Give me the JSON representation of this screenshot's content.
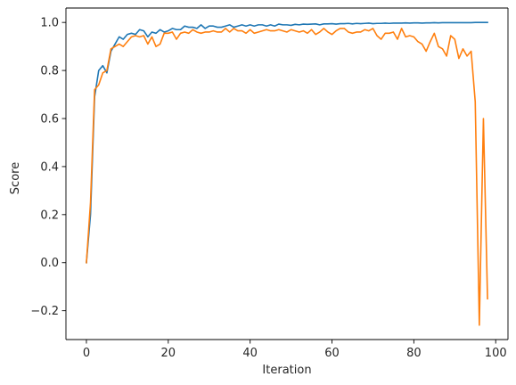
{
  "chart_data": {
    "type": "line",
    "title": "",
    "xlabel": "Iteration",
    "ylabel": "Score",
    "xlim": [
      -5,
      103
    ],
    "ylim": [
      -0.32,
      1.06
    ],
    "xticks": [
      0,
      20,
      40,
      60,
      80,
      100
    ],
    "yticks": [
      -0.2,
      0.0,
      0.2,
      0.4,
      0.6,
      0.8,
      1.0
    ],
    "xtick_labels": [
      "0",
      "20",
      "40",
      "60",
      "80",
      "100"
    ],
    "ytick_labels": [
      "−0.2",
      "0.0",
      "0.2",
      "0.4",
      "0.6",
      "0.8",
      "1.0"
    ],
    "grid": false,
    "series": [
      {
        "color": "#1f77b4",
        "x": [
          0,
          1,
          2,
          3,
          4,
          5,
          6,
          7,
          8,
          9,
          10,
          11,
          12,
          13,
          14,
          15,
          16,
          17,
          18,
          19,
          20,
          21,
          22,
          23,
          24,
          25,
          26,
          27,
          28,
          29,
          30,
          31,
          32,
          33,
          34,
          35,
          36,
          37,
          38,
          39,
          40,
          41,
          42,
          43,
          44,
          45,
          46,
          47,
          48,
          49,
          50,
          51,
          52,
          53,
          54,
          55,
          56,
          57,
          58,
          59,
          60,
          61,
          62,
          63,
          64,
          65,
          66,
          67,
          68,
          69,
          70,
          71,
          72,
          73,
          74,
          75,
          76,
          77,
          78,
          79,
          80,
          81,
          82,
          83,
          84,
          85,
          86,
          87,
          88,
          89,
          90,
          91,
          92,
          93,
          94,
          95,
          96,
          97,
          98
        ],
        "values": [
          0.0,
          0.2,
          0.69,
          0.8,
          0.82,
          0.79,
          0.88,
          0.91,
          0.94,
          0.93,
          0.95,
          0.955,
          0.95,
          0.97,
          0.965,
          0.94,
          0.96,
          0.955,
          0.97,
          0.96,
          0.965,
          0.975,
          0.97,
          0.97,
          0.985,
          0.98,
          0.98,
          0.975,
          0.99,
          0.975,
          0.985,
          0.985,
          0.98,
          0.98,
          0.985,
          0.99,
          0.98,
          0.985,
          0.99,
          0.985,
          0.99,
          0.985,
          0.99,
          0.99,
          0.985,
          0.99,
          0.985,
          0.993,
          0.99,
          0.99,
          0.988,
          0.992,
          0.99,
          0.993,
          0.992,
          0.993,
          0.994,
          0.99,
          0.994,
          0.994,
          0.995,
          0.993,
          0.995,
          0.995,
          0.996,
          0.994,
          0.996,
          0.995,
          0.996,
          0.997,
          0.995,
          0.996,
          0.996,
          0.997,
          0.996,
          0.997,
          0.997,
          0.997,
          0.998,
          0.997,
          0.998,
          0.998,
          0.997,
          0.998,
          0.998,
          0.999,
          0.998,
          0.999,
          0.999,
          0.999,
          0.999,
          0.999,
          0.999,
          0.999,
          0.999,
          1.0,
          1.0,
          1.0,
          1.0
        ]
      },
      {
        "color": "#ff7f0e",
        "x": [
          0,
          1,
          2,
          3,
          4,
          5,
          6,
          7,
          8,
          9,
          10,
          11,
          12,
          13,
          14,
          15,
          16,
          17,
          18,
          19,
          20,
          21,
          22,
          23,
          24,
          25,
          26,
          27,
          28,
          29,
          30,
          31,
          32,
          33,
          34,
          35,
          36,
          37,
          38,
          39,
          40,
          41,
          42,
          43,
          44,
          45,
          46,
          47,
          48,
          49,
          50,
          51,
          52,
          53,
          54,
          55,
          56,
          57,
          58,
          59,
          60,
          61,
          62,
          63,
          64,
          65,
          66,
          67,
          68,
          69,
          70,
          71,
          72,
          73,
          74,
          75,
          76,
          77,
          78,
          79,
          80,
          81,
          82,
          83,
          84,
          85,
          86,
          87,
          88,
          89,
          90,
          91,
          92,
          93,
          94,
          95,
          96,
          97,
          98
        ],
        "values": [
          0.0,
          0.25,
          0.72,
          0.74,
          0.79,
          0.8,
          0.89,
          0.9,
          0.91,
          0.9,
          0.92,
          0.94,
          0.945,
          0.94,
          0.945,
          0.91,
          0.94,
          0.9,
          0.91,
          0.955,
          0.955,
          0.96,
          0.93,
          0.955,
          0.96,
          0.955,
          0.97,
          0.96,
          0.955,
          0.96,
          0.96,
          0.965,
          0.96,
          0.96,
          0.975,
          0.96,
          0.975,
          0.965,
          0.965,
          0.955,
          0.97,
          0.955,
          0.96,
          0.965,
          0.97,
          0.965,
          0.965,
          0.97,
          0.965,
          0.96,
          0.97,
          0.965,
          0.96,
          0.965,
          0.955,
          0.97,
          0.95,
          0.96,
          0.975,
          0.96,
          0.95,
          0.965,
          0.975,
          0.975,
          0.96,
          0.955,
          0.96,
          0.96,
          0.97,
          0.965,
          0.975,
          0.945,
          0.93,
          0.955,
          0.955,
          0.96,
          0.93,
          0.975,
          0.94,
          0.945,
          0.94,
          0.92,
          0.91,
          0.88,
          0.92,
          0.955,
          0.9,
          0.89,
          0.86,
          0.945,
          0.93,
          0.85,
          0.89,
          0.86,
          0.88,
          0.67,
          -0.26,
          0.6,
          -0.15
        ]
      }
    ]
  }
}
